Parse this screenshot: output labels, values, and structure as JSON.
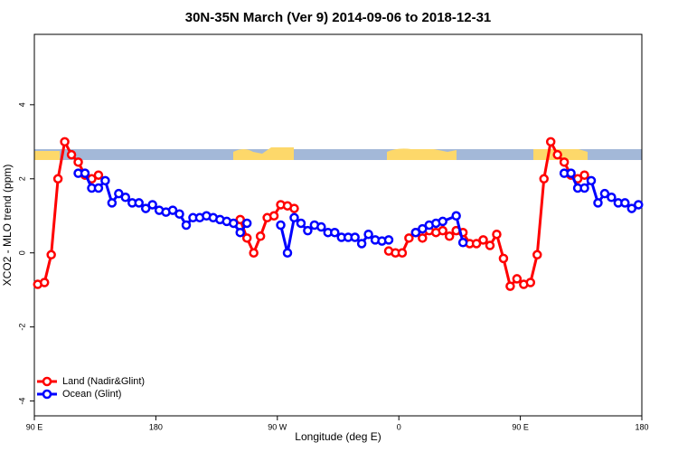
{
  "chart_data": {
    "type": "line",
    "title": "30N-35N March (Ver 9)   2014-09-06 to 2018-12-31",
    "x_label": "Longitude (deg E)",
    "y_label": "XCO2 - MLO trend (ppm)",
    "xlim": [
      90,
      540
    ],
    "ylim": [
      -4.4,
      5.9
    ],
    "xticks": [
      {
        "value": 90,
        "label": "90 E"
      },
      180,
      {
        "value": 270,
        "label": "90 W"
      },
      {
        "value": 360,
        "label": "0"
      },
      {
        "value": 450,
        "label": "90 E"
      },
      {
        "value": 540,
        "label": "180"
      }
    ],
    "yticks": [
      -4,
      -2,
      0,
      2,
      4
    ],
    "legend": "bottom-left",
    "series": [
      {
        "name": "Land (Nadir&Glint)",
        "color": "#ff0000",
        "x": [
          92.5,
          97.5,
          102.5,
          107.5,
          112.5,
          117.5,
          122.5,
          127.5,
          132.5,
          137.5,
          142.5,
          242.5,
          247.5,
          252.5,
          257.5,
          262.5,
          267.5,
          272.5,
          277.5,
          282.5,
          287.5,
          352.5,
          357.5,
          362.5,
          367.5,
          372.5,
          377.5,
          382.5,
          387.5,
          392.5,
          397.5,
          402.5,
          407.5,
          412.5,
          417.5,
          422.5,
          427.5,
          432.5,
          437.5,
          442.5,
          447.5,
          452.5,
          457.5,
          462.5,
          467.5,
          472.5,
          477.5,
          482.5,
          487.5,
          492.5,
          497.5
        ],
        "values": [
          -0.85,
          -0.8,
          -0.05,
          2.0,
          3.0,
          2.65,
          2.45,
          2.1,
          2.0,
          2.1,
          null,
          0.9,
          0.4,
          0.0,
          0.45,
          0.95,
          1.0,
          1.3,
          1.27,
          1.2,
          null,
          0.05,
          0.0,
          0.0,
          0.4,
          0.55,
          0.4,
          0.6,
          0.55,
          0.6,
          0.45,
          0.6,
          0.55,
          0.25,
          0.25,
          0.35,
          0.2,
          0.5,
          -0.15,
          -0.9,
          -0.7,
          -0.85,
          -0.8,
          -0.05,
          2.0,
          3.0,
          2.65,
          2.45,
          2.1,
          2.0,
          2.1
        ]
      },
      {
        "name": "Ocean (Glint)",
        "color": "#0000ff",
        "x": [
          122.5,
          127.5,
          132.5,
          137.5,
          142.5,
          147.5,
          152.5,
          157.5,
          162.5,
          167.5,
          172.5,
          177.5,
          182.5,
          187.5,
          192.5,
          197.5,
          202.5,
          207.5,
          212.5,
          217.5,
          222.5,
          227.5,
          232.5,
          237.5,
          242.5,
          247.5,
          257.5,
          272.5,
          277.5,
          282.5,
          287.5,
          292.5,
          297.5,
          302.5,
          307.5,
          312.5,
          317.5,
          322.5,
          327.5,
          332.5,
          337.5,
          342.5,
          347.5,
          352.5,
          357.5,
          372.5,
          377.5,
          382.5,
          387.5,
          392.5,
          402.5,
          407.5,
          477.5,
          482.5,
          487.5,
          492.5,
          497.5,
          502.5,
          507.5,
          512.5,
          517.5,
          522.5,
          527.5,
          532.5,
          537.5
        ],
        "values": [
          2.15,
          2.15,
          1.75,
          1.75,
          1.95,
          1.35,
          1.6,
          1.5,
          1.35,
          1.35,
          1.2,
          1.3,
          1.15,
          1.1,
          1.15,
          1.05,
          0.75,
          0.95,
          0.95,
          1.0,
          0.95,
          0.9,
          0.85,
          0.8,
          0.55,
          0.8,
          null,
          0.75,
          0.0,
          0.95,
          0.8,
          0.6,
          0.75,
          0.7,
          0.55,
          0.55,
          0.42,
          0.42,
          0.42,
          0.25,
          0.5,
          0.35,
          0.32,
          0.35,
          null,
          0.55,
          0.65,
          0.75,
          0.8,
          0.85,
          1.0,
          0.28,
          null,
          2.15,
          2.15,
          1.75,
          1.75,
          1.95,
          1.35,
          1.6,
          1.5,
          1.35,
          1.35,
          1.2,
          1.3
        ]
      }
    ]
  }
}
